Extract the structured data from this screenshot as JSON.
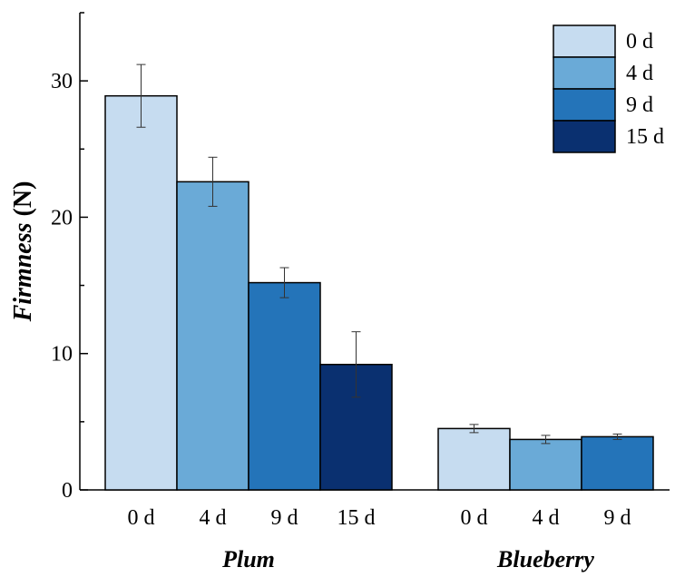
{
  "chart_data": {
    "type": "bar",
    "ylabel": {
      "italic": "Firmness",
      "unit": " (N)"
    },
    "ylim": [
      0,
      35
    ],
    "yticks": [
      0,
      10,
      20,
      30
    ],
    "grid": false,
    "legend_position": "top-right",
    "legend": [
      {
        "label": "0 d",
        "color": "#c6dcf0"
      },
      {
        "label": "4 d",
        "color": "#6aaad7"
      },
      {
        "label": "9 d",
        "color": "#2474b9"
      },
      {
        "label": "15 d",
        "color": "#0a3070"
      }
    ],
    "groups": [
      {
        "name": "Plum",
        "bars": [
          {
            "label": "0 d",
            "value": 28.9,
            "error": 2.3,
            "color": "#c6dcf0"
          },
          {
            "label": "4 d",
            "value": 22.6,
            "error": 1.8,
            "color": "#6aaad7"
          },
          {
            "label": "9 d",
            "value": 15.2,
            "error": 1.1,
            "color": "#2474b9"
          },
          {
            "label": "15 d",
            "value": 9.2,
            "error": 2.4,
            "color": "#0a3070"
          }
        ]
      },
      {
        "name": "Blueberry",
        "bars": [
          {
            "label": "0 d",
            "value": 4.5,
            "error": 0.3,
            "color": "#c6dcf0"
          },
          {
            "label": "4 d",
            "value": 3.7,
            "error": 0.3,
            "color": "#6aaad7"
          },
          {
            "label": "9 d",
            "value": 3.9,
            "error": 0.2,
            "color": "#2474b9"
          }
        ]
      }
    ]
  }
}
